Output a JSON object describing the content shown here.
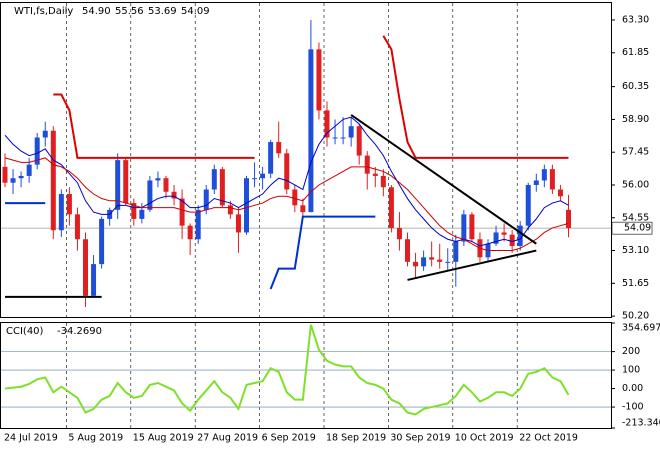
{
  "chart_data": {
    "type": "candlestick",
    "title": "WTI,fs,Daily",
    "last_labels": [
      "54.90",
      "55.56",
      "53.69",
      "54.09"
    ],
    "categories": [
      "24 Jul 2019",
      null,
      null,
      null,
      null,
      null,
      null,
      null,
      "5 Aug 2019",
      null,
      null,
      null,
      null,
      null,
      null,
      null,
      "15 Aug 2019",
      null,
      null,
      null,
      null,
      null,
      null,
      null,
      "27 Aug 2019",
      null,
      null,
      null,
      null,
      null,
      null,
      null,
      "6 Sep 2019",
      null,
      null,
      null,
      null,
      null,
      null,
      null,
      "18 Sep 2019",
      null,
      null,
      null,
      null,
      null,
      null,
      null,
      "30 Sep 2019",
      null,
      null,
      null,
      null,
      null,
      null,
      null,
      "10 Oct 2019",
      null,
      null,
      null,
      null,
      null,
      null,
      null,
      "22 Oct 2019",
      null,
      null,
      null,
      null,
      null,
      null
    ],
    "open": [
      56.8,
      56.1,
      56.3,
      56.4,
      56.9,
      58.1,
      58.4,
      54.0,
      55.6,
      54.7,
      53.6,
      51.1,
      52.5,
      54.5,
      54.9,
      57.1,
      55.2,
      54.5,
      54.9,
      56.2,
      56.3,
      55.7,
      55.4,
      54.2,
      53.6,
      54.9,
      55.8,
      56.7,
      55.1,
      54.7,
      53.9,
      56.3,
      56.3,
      56.5,
      57.9,
      57.4,
      55.8,
      55.1,
      54.8,
      62.0,
      59.3,
      58.1,
      58.1,
      58.1,
      58.6,
      57.3,
      56.5,
      56.4,
      55.9,
      54.1,
      53.6,
      52.6,
      52.4,
      52.8,
      52.7,
      52.6,
      52.6,
      53.5,
      54.7,
      53.6,
      52.8,
      53.4,
      53.9,
      53.8,
      53.3,
      54.2,
      56.0,
      56.2,
      56.7,
      55.8,
      54.9
    ],
    "high": [
      57.4,
      56.7,
      56.6,
      57.2,
      58.3,
      58.8,
      58.6,
      55.8,
      55.9,
      55.0,
      53.9,
      52.9,
      54.6,
      55.0,
      57.4,
      57.2,
      55.4,
      55.2,
      56.4,
      56.6,
      56.4,
      56.0,
      55.8,
      54.3,
      55.1,
      56.0,
      56.9,
      56.8,
      55.3,
      55.0,
      56.4,
      57.0,
      56.8,
      58.0,
      58.8,
      57.6,
      56.0,
      55.4,
      63.3,
      62.3,
      59.7,
      58.9,
      59.0,
      59.0,
      58.7,
      57.5,
      56.8,
      56.7,
      56.0,
      54.8,
      53.9,
      53.0,
      53.1,
      53.5,
      53.4,
      53.2,
      53.8,
      54.9,
      54.8,
      53.9,
      53.6,
      54.2,
      54.3,
      54.0,
      54.4,
      56.1,
      56.5,
      56.9,
      56.9,
      56.0,
      55.56
    ],
    "low": [
      55.9,
      55.6,
      55.9,
      56.1,
      56.7,
      57.7,
      53.6,
      53.7,
      54.2,
      53.1,
      50.6,
      51.0,
      52.3,
      54.2,
      54.5,
      55.1,
      54.2,
      54.3,
      54.8,
      55.9,
      55.4,
      55.1,
      53.6,
      52.9,
      53.4,
      54.7,
      55.6,
      55.0,
      54.5,
      53.0,
      53.8,
      55.9,
      55.8,
      56.3,
      57.2,
      55.6,
      54.8,
      54.6,
      54.8,
      58.9,
      57.7,
      57.8,
      57.8,
      57.7,
      56.9,
      55.8,
      55.9,
      55.5,
      53.9,
      53.1,
      52.4,
      51.9,
      52.2,
      52.4,
      52.3,
      52.2,
      51.5,
      53.3,
      53.5,
      52.6,
      52.6,
      53.3,
      53.5,
      53.0,
      53.1,
      54.0,
      55.7,
      55.9,
      55.6,
      55.3,
      53.69
    ],
    "close": [
      56.1,
      56.3,
      56.4,
      56.9,
      58.1,
      58.4,
      54.0,
      55.6,
      54.7,
      53.6,
      51.1,
      52.5,
      54.5,
      54.9,
      57.1,
      55.2,
      54.5,
      54.9,
      56.2,
      56.3,
      55.7,
      55.4,
      54.2,
      53.6,
      54.9,
      55.8,
      56.7,
      55.1,
      54.7,
      53.9,
      56.3,
      56.3,
      56.5,
      57.9,
      57.4,
      55.8,
      55.1,
      54.8,
      62.0,
      59.3,
      58.1,
      58.1,
      58.1,
      58.6,
      57.3,
      56.5,
      56.4,
      55.9,
      54.1,
      53.6,
      52.6,
      52.4,
      52.8,
      52.7,
      52.6,
      52.6,
      53.5,
      54.7,
      53.6,
      52.8,
      53.4,
      53.9,
      53.8,
      53.3,
      54.2,
      56.0,
      56.2,
      56.7,
      55.8,
      55.5,
      54.09
    ],
    "up_color": "#1f4fd8",
    "down_color": "#e02020",
    "ylim": [
      50.16,
      64.05
    ],
    "yticks": [
      {
        "value": 63.3,
        "label": "63.30"
      },
      61.85,
      60.35,
      {
        "value": 58.9,
        "label": "58.90"
      },
      57.45,
      {
        "value": 56,
        "label": "56.00"
      },
      54.55,
      {
        "value": 53.1,
        "label": "53.10"
      },
      51.65,
      {
        "value": 50.2,
        "label": "50.20"
      }
    ],
    "series": [
      {
        "color": "#0000c8",
        "width": 1,
        "values": [
          58.2,
          57.8,
          57.5,
          57.3,
          57.4,
          57.6,
          57.1,
          56.9,
          56.5,
          56.1,
          55.3,
          54.8,
          54.7,
          54.7,
          55.1,
          55.1,
          55.0,
          55.0,
          55.2,
          55.4,
          55.5,
          55.5,
          55.3,
          55.0,
          55.0,
          55.1,
          55.4,
          55.3,
          55.2,
          55.0,
          55.2,
          55.4,
          55.6,
          56.0,
          56.3,
          56.2,
          56.0,
          55.8,
          57.0,
          57.8,
          58.3,
          58.6,
          58.9,
          59.0,
          58.7,
          58.2,
          57.8,
          57.3,
          56.6,
          56.0,
          55.4,
          54.9,
          54.5,
          54.1,
          53.8,
          53.6,
          53.5,
          53.6,
          53.5,
          53.3,
          53.4,
          53.5,
          53.6,
          53.5,
          53.6,
          54.1,
          54.5,
          55.0,
          55.2,
          55.3,
          55.1
        ]
      },
      {
        "color": "#cc0000",
        "width": 1,
        "values": [
          57.2,
          57.1,
          57.0,
          57.0,
          57.1,
          57.2,
          56.9,
          56.8,
          56.6,
          56.3,
          55.9,
          55.6,
          55.4,
          55.3,
          55.3,
          55.2,
          55.1,
          55.0,
          55.0,
          55.0,
          55.0,
          55.0,
          54.9,
          54.8,
          54.8,
          54.9,
          55.0,
          55.0,
          55.0,
          54.9,
          55.0,
          55.1,
          55.2,
          55.4,
          55.5,
          55.5,
          55.4,
          55.3,
          55.7,
          56.0,
          56.2,
          56.4,
          56.6,
          56.8,
          56.8,
          56.8,
          56.7,
          56.6,
          56.4,
          56.1,
          55.8,
          55.4,
          55.0,
          54.6,
          54.2,
          53.9,
          53.7,
          53.6,
          53.4,
          53.2,
          53.1,
          53.1,
          53.1,
          53.1,
          53.2,
          53.4,
          53.6,
          53.9,
          54.1,
          54.2,
          54.3
        ]
      },
      {
        "color": "#e00000",
        "width": 2,
        "values": [
          null,
          null,
          null,
          null,
          null,
          null,
          60.0,
          60.0,
          59.3,
          57.2,
          57.2,
          57.2,
          57.2,
          57.2,
          57.2,
          57.2,
          57.2,
          57.2,
          57.2,
          57.2,
          57.2,
          57.2,
          57.2,
          57.2,
          57.2,
          57.2,
          57.2,
          57.2,
          57.2,
          57.2,
          57.2,
          57.2,
          null,
          null,
          null,
          null,
          null,
          null,
          null,
          null,
          null,
          null,
          null,
          null,
          null,
          null,
          null,
          62.6,
          62.0,
          59.8,
          57.9,
          57.2,
          57.2,
          57.2,
          57.2,
          57.2,
          57.2,
          57.2,
          57.2,
          57.2,
          57.2,
          57.2,
          57.2,
          57.2,
          57.2,
          57.2,
          57.2,
          57.2,
          57.2,
          57.2,
          57.2
        ]
      },
      {
        "color": "#0030d0",
        "width": 2,
        "values": [
          55.2,
          55.2,
          55.2,
          55.2,
          55.2,
          55.2,
          null,
          null,
          null,
          null,
          null,
          null,
          null,
          null,
          null,
          null,
          null,
          null,
          null,
          null,
          null,
          null,
          null,
          null,
          null,
          null,
          null,
          null,
          null,
          null,
          null,
          null,
          null,
          51.4,
          52.3,
          52.3,
          52.3,
          54.6,
          54.6,
          54.6,
          54.6,
          54.6,
          54.6,
          54.6,
          54.6,
          54.6,
          54.6,
          null,
          null,
          null,
          null,
          null,
          null,
          null,
          null,
          null,
          null,
          null,
          null,
          null,
          null,
          null,
          null,
          null,
          null,
          null,
          null,
          null,
          null,
          null,
          null
        ]
      },
      {
        "color": "#000000",
        "width": 2,
        "values": [
          51.05,
          51.05,
          51.05,
          51.05,
          51.05,
          51.05,
          51.05,
          51.05,
          51.05,
          51.05,
          51.05,
          51.05,
          51.05,
          null,
          null,
          null,
          null,
          null,
          null,
          null,
          null,
          null,
          null,
          null,
          null,
          null,
          null,
          null,
          null,
          null,
          null,
          null,
          null,
          null,
          null,
          null,
          null,
          null,
          null,
          null,
          null,
          null,
          null,
          null,
          null,
          null,
          null,
          null,
          null,
          null,
          null,
          null,
          null,
          null,
          null,
          null,
          null,
          null,
          null,
          null,
          null,
          null,
          null,
          null,
          null,
          null,
          null,
          null,
          null,
          null,
          null
        ]
      }
    ],
    "trendlines": [
      {
        "x": [
          43,
          66
        ],
        "values": [
          59.1,
          53.4
        ]
      },
      {
        "x": [
          50,
          66
        ],
        "values": [
          51.8,
          53.1
        ]
      }
    ],
    "cci": {
      "label": "CCI(40)",
      "color": "#7ee02a",
      "values": [
        0,
        5,
        10,
        25,
        50,
        60,
        -20,
        10,
        -20,
        -50,
        -130,
        -110,
        -60,
        -40,
        30,
        -20,
        -50,
        -40,
        20,
        30,
        10,
        -10,
        -80,
        -120,
        -60,
        -10,
        40,
        -20,
        -50,
        -110,
        20,
        30,
        40,
        110,
        90,
        -20,
        -60,
        -60,
        345,
        210,
        150,
        130,
        120,
        120,
        60,
        30,
        20,
        0,
        -60,
        -80,
        -130,
        -140,
        -110,
        -100,
        -90,
        -80,
        -40,
        20,
        -20,
        -70,
        -50,
        -20,
        -20,
        -40,
        0,
        80,
        90,
        110,
        60,
        40,
        -34.269
      ],
      "value_labels": [
        null,
        null,
        null,
        null,
        null,
        null,
        null,
        null,
        null,
        null,
        null,
        null,
        null,
        null,
        null,
        null,
        null,
        null,
        null,
        null,
        null,
        null,
        null,
        null,
        null,
        null,
        null,
        null,
        null,
        null,
        null,
        null,
        null,
        null,
        null,
        null,
        null,
        null,
        null,
        null,
        null,
        null,
        null,
        null,
        null,
        null,
        null,
        null,
        null,
        null,
        null,
        null,
        null,
        null,
        null,
        null,
        null,
        null,
        null,
        null,
        null,
        null,
        null,
        null,
        null,
        null,
        null,
        null,
        null,
        null,
        "-34.2690"
      ],
      "ylim": [
        -213.34,
        354.6973
      ],
      "yticks": [
        354.6973,
        200,
        100,
        {
          "value": 0,
          "label": "0.00"
        },
        -100,
        {
          "value": -213.34,
          "label": "-213.340"
        }
      ]
    }
  }
}
